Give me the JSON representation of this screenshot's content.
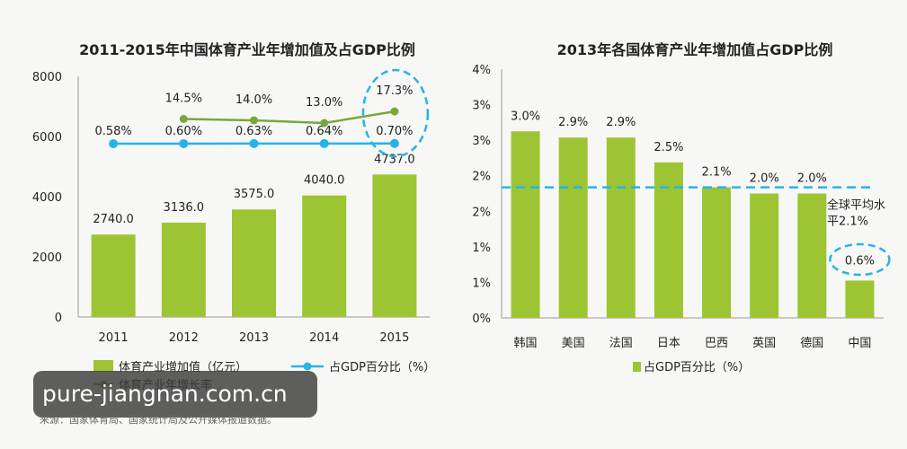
{
  "chart_data": [
    {
      "type": "bar",
      "title": "2011-2015年中国体育产业年增加值及占GDP比例",
      "categories": [
        "2011",
        "2012",
        "2013",
        "2014",
        "2015"
      ],
      "ylim": [
        0,
        8000
      ],
      "yticks": [
        "0",
        "2000",
        "4000",
        "6000",
        "8000"
      ],
      "series": [
        {
          "name": "体育产业增加值（亿元）",
          "kind": "bar",
          "color": "#9dc432",
          "values": [
            2740.0,
            3136.0,
            3575.0,
            4040.0,
            4737.0
          ],
          "labels": [
            "2740.0",
            "3136.0",
            "3575.0",
            "4040.0",
            "4737.0"
          ]
        },
        {
          "name": "占GDP百分比（%）",
          "kind": "line",
          "color": "#27b3e8",
          "values": [
            0.58,
            0.6,
            0.63,
            0.64,
            0.7
          ],
          "labels": [
            "0.58%",
            "0.60%",
            "0.63%",
            "0.64%",
            "0.70%"
          ]
        },
        {
          "name": "体育产业年增长率",
          "kind": "line",
          "color": "#77a83a",
          "values": [
            null,
            14.5,
            14.0,
            13.0,
            17.3
          ],
          "labels": [
            "",
            "14.5%",
            "14.0%",
            "13.0%",
            "17.3%"
          ]
        }
      ]
    },
    {
      "type": "bar",
      "title": "2013年各国体育产业年增加值占GDP比例",
      "categories": [
        "韩国",
        "美国",
        "法国",
        "日本",
        "巴西",
        "英国",
        "德国",
        "中国"
      ],
      "ylim": [
        0,
        4
      ],
      "yticks": [
        "0%",
        "1%",
        "1%",
        "2%",
        "2%",
        "3%",
        "3%",
        "4%"
      ],
      "series": [
        {
          "name": "占GDP百分比（%）",
          "kind": "bar",
          "color": "#9dc432",
          "values": [
            3.0,
            2.9,
            2.9,
            2.5,
            2.1,
            2.0,
            2.0,
            0.6
          ],
          "labels": [
            "3.0%",
            "2.9%",
            "2.9%",
            "2.5%",
            "2.1%",
            "2.0%",
            "2.0%",
            "0.6%"
          ]
        }
      ],
      "reference_line": {
        "value": 2.1,
        "label_line1": "全球平均水",
        "label_line2": "平2.1%",
        "color": "#27b3e8"
      }
    }
  ],
  "watermark": "pure-jiangnan.com.cn",
  "source": "来源：国家体育局、国家统计局及公开媒体报道数据。",
  "colors": {
    "bar": "#9dc432",
    "line_blue": "#27b3e8",
    "line_green": "#77a83a",
    "highlight": "#27b3e8"
  }
}
